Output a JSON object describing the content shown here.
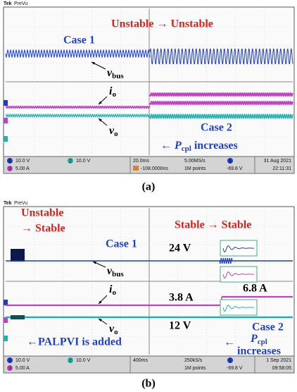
{
  "panels": [
    {
      "header": {
        "brand": "Tek",
        "mode": "PreVu"
      },
      "annotations": {
        "transition": "Unstable → Unstable",
        "case1": "Case 1",
        "vbus": {
          "symbol": "v",
          "subscript": "bus"
        },
        "io": {
          "symbol": "i",
          "subscript": "o"
        },
        "vo": {
          "symbol": "v",
          "subscript": "o"
        },
        "case2": "Case 2",
        "pcpl": {
          "arrow": "←",
          "symbol": "P",
          "subscript": "cpl",
          "text": "increases"
        }
      },
      "status": {
        "ch1": {
          "number": "1",
          "scale": "10.0 V"
        },
        "ch2": {
          "number": "2",
          "scale": "10.0 V"
        },
        "ch3": {
          "number": "3",
          "scale": "5.00 A"
        },
        "timebase": "20.0ms",
        "trigger_delay": "-108.0000ns",
        "sample_rate": "5.00MS/s",
        "record": "1M points",
        "trigger_source": "1",
        "trigger_level": "-69.8 V",
        "date": "31 Aug 2021",
        "time": "22:11:31"
      },
      "caption": "(a)"
    },
    {
      "header": {
        "brand": "Tek",
        "mode": "PreVu"
      },
      "annotations": {
        "transition_line1": "Unstable",
        "transition_line2": "→ Stable",
        "transition_right": "Stable → Stable",
        "case1": "Case 1",
        "vbus_level": "24 V",
        "vbus": {
          "symbol": "v",
          "subscript": "bus"
        },
        "io": {
          "symbol": "i",
          "subscript": "o"
        },
        "io_before": "3.8 A",
        "io_after": "6.8 A",
        "vo": {
          "symbol": "v",
          "subscript": "o"
        },
        "vo_level": "12 V",
        "added": "←PALPVI is added",
        "case2": "Case 2",
        "pcpl": {
          "arrow": "←",
          "symbol": "P",
          "subscript": "cpl",
          "text": "increases"
        }
      },
      "status": {
        "ch1": {
          "number": "1",
          "scale": "10.0 V"
        },
        "ch2": {
          "number": "2",
          "scale": "10.0 V"
        },
        "ch3": {
          "number": "3",
          "scale": "5.00 A"
        },
        "timebase": "400ms",
        "sample_rate": "250kS/s",
        "record": "1M points",
        "trigger_source": "1",
        "trigger_level": "-69.8 V",
        "date": "1 Sep 2021",
        "time": "09:58:05"
      },
      "caption": "(b)"
    }
  ]
}
